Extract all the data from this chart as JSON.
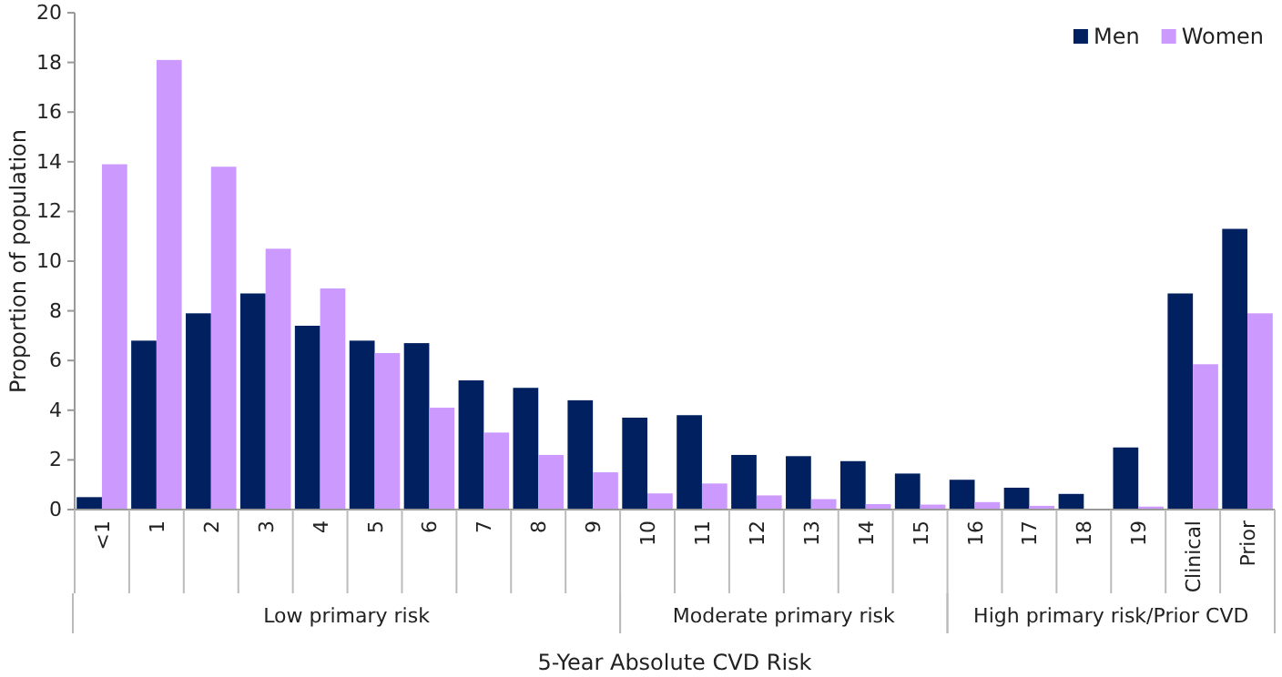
{
  "chart_data": {
    "type": "bar",
    "xlabel": "5-Year Absolute CVD Risk",
    "ylabel": "Proportion of population",
    "categories": [
      "<1",
      "1",
      "2",
      "3",
      "4",
      "5",
      "6",
      "7",
      "8",
      "9",
      "10",
      "11",
      "12",
      "13",
      "14",
      "15",
      "16",
      "17",
      "18",
      "19",
      "Clinical",
      "Prior"
    ],
    "series": [
      {
        "name": "Men",
        "color": "#002060",
        "values": [
          0.5,
          6.8,
          7.9,
          8.7,
          7.4,
          6.8,
          6.7,
          5.2,
          4.9,
          4.4,
          3.7,
          3.8,
          2.2,
          2.15,
          1.95,
          1.45,
          1.2,
          0.88,
          0.63,
          2.5,
          8.7,
          11.3
        ]
      },
      {
        "name": "Women",
        "color": "#cc99ff",
        "values": [
          13.9,
          18.1,
          13.8,
          10.5,
          8.9,
          6.3,
          4.1,
          3.1,
          2.2,
          1.5,
          0.65,
          1.05,
          0.57,
          0.42,
          0.22,
          0.2,
          0.3,
          0.15,
          null,
          0.12,
          5.85,
          7.9
        ]
      }
    ],
    "annotations": [
      "Low primary risk",
      "Moderate primary risk",
      "High primary risk/Prior CVD"
    ],
    "ylim": [
      0,
      20
    ],
    "yticks": [
      0,
      2,
      4,
      6,
      8,
      10,
      12,
      14,
      16,
      18,
      20
    ],
    "grid": false,
    "legend": "top right"
  }
}
